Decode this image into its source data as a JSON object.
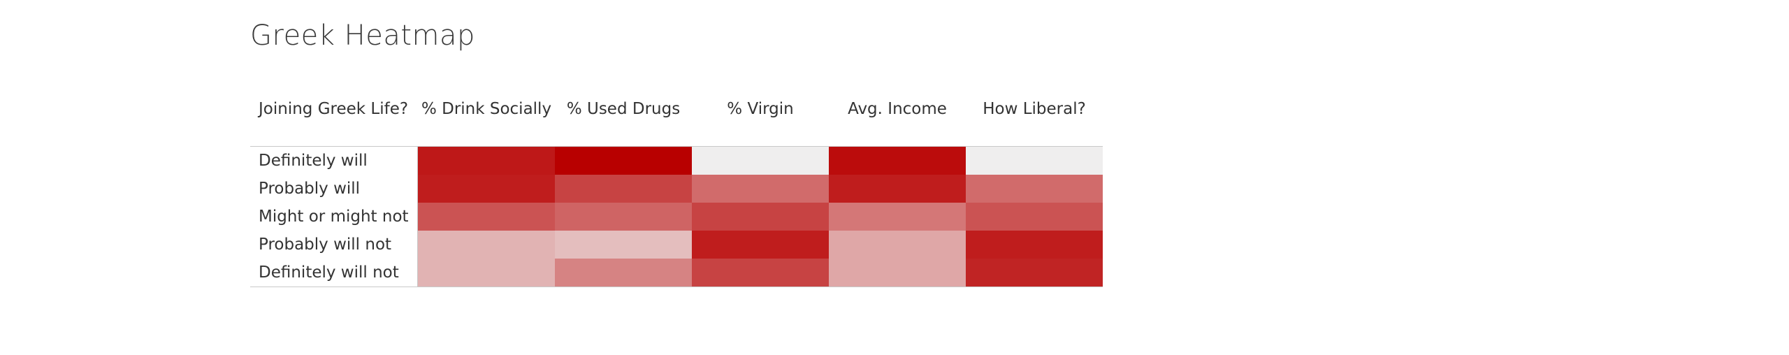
{
  "page": {
    "title": "Greek Heatmap"
  },
  "chart_data": {
    "type": "heatmap",
    "title": "Greek Heatmap",
    "row_header": "Joining Greek Life?",
    "columns": [
      "% Drink Socially",
      "% Used Drugs",
      "% Virgin",
      "Avg. Income",
      "How Liberal?"
    ],
    "rows": [
      "Definitely will",
      "Probably will",
      "Might or might not",
      "Probably will not",
      "Definitely will not"
    ],
    "values": [
      [
        0.9,
        1.0,
        0.0,
        0.95,
        0.0
      ],
      [
        0.88,
        0.72,
        0.55,
        0.88,
        0.55
      ],
      [
        0.65,
        0.58,
        0.72,
        0.5,
        0.65
      ],
      [
        0.25,
        0.2,
        0.88,
        0.3,
        0.88
      ],
      [
        0.25,
        0.45,
        0.72,
        0.3,
        0.85
      ]
    ],
    "color_scale": {
      "low": "#efeeee",
      "high": "#b80000"
    },
    "legend": "none"
  }
}
